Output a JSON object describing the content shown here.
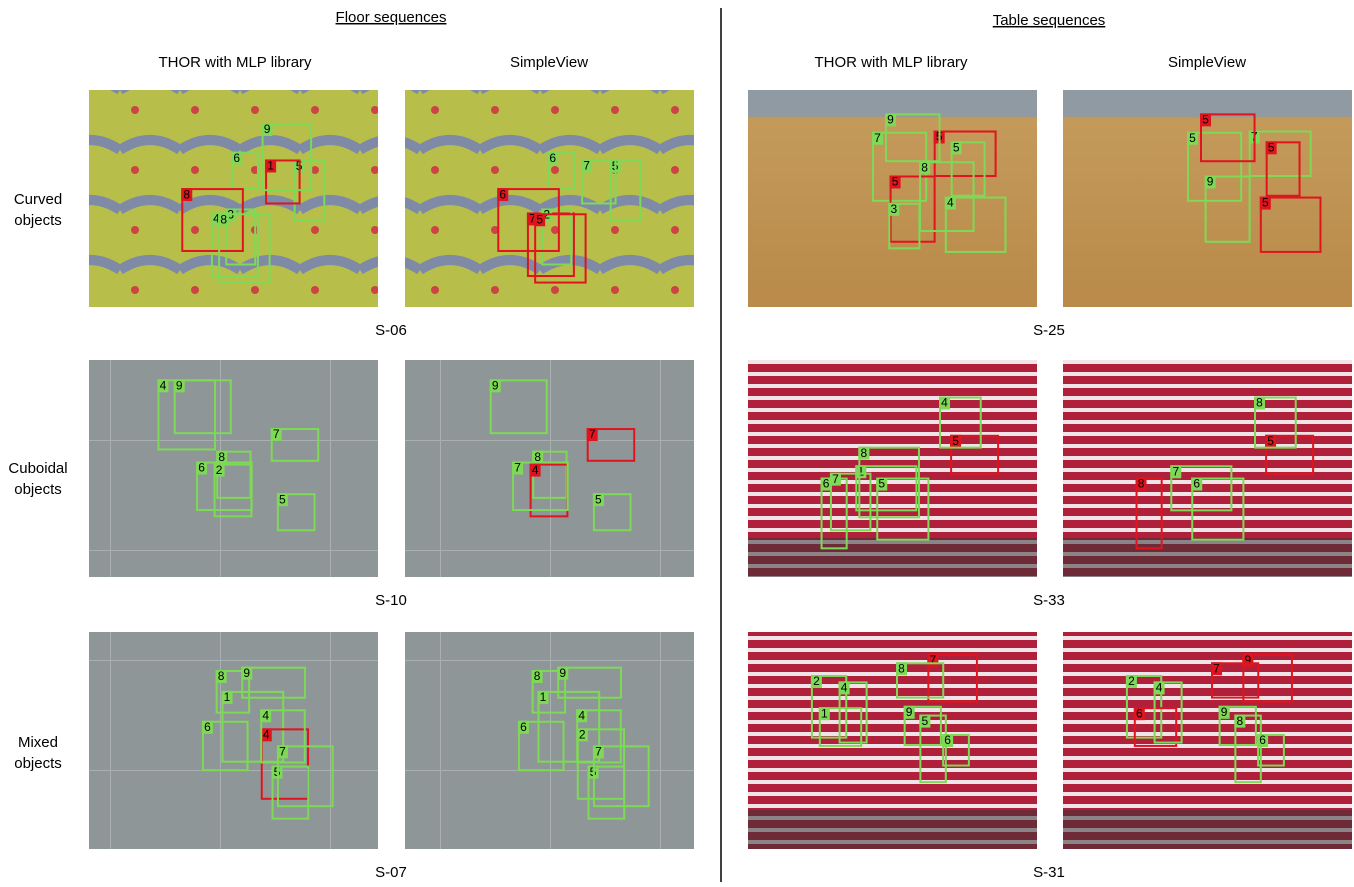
{
  "headers": [
    "Floor sequences",
    "Table sequences"
  ],
  "column_labels": [
    "THOR with MLP library",
    "SimpleView",
    "THOR with MLP library",
    "SimpleView"
  ],
  "row_labels": [
    [
      "Curved",
      "objects"
    ],
    [
      "Cuboidal",
      "objects"
    ],
    [
      "Mixed",
      "objects"
    ]
  ],
  "panels": [
    {
      "sequence": "S-06",
      "images": [
        {
          "boxes": [
            {
              "label": "4",
              "color": "green"
            },
            {
              "label": "6",
              "color": "green"
            },
            {
              "label": "5",
              "color": "green"
            },
            {
              "label": "3",
              "color": "green"
            },
            {
              "label": "1",
              "color": "red"
            },
            {
              "label": "8",
              "color": "red"
            },
            {
              "label": "8",
              "color": "green"
            },
            {
              "label": "9",
              "color": "green"
            }
          ]
        },
        {
          "boxes": [
            {
              "label": "7",
              "color": "red"
            },
            {
              "label": "6",
              "color": "green"
            },
            {
              "label": "5",
              "color": "green"
            },
            {
              "label": "2",
              "color": "green"
            },
            {
              "label": "7",
              "color": "green"
            },
            {
              "label": "6",
              "color": "red"
            },
            {
              "label": "5",
              "color": "red"
            }
          ]
        }
      ]
    },
    {
      "sequence": "S-25",
      "images": [
        {
          "boxes": [
            {
              "label": "4",
              "color": "green"
            },
            {
              "label": "5",
              "color": "red"
            },
            {
              "label": "7",
              "color": "green"
            },
            {
              "label": "5",
              "color": "green"
            },
            {
              "label": "5",
              "color": "red"
            },
            {
              "label": "9",
              "color": "green"
            },
            {
              "label": "8",
              "color": "green"
            },
            {
              "label": "3",
              "color": "green"
            }
          ]
        },
        {
          "boxes": [
            {
              "label": "5",
              "color": "red"
            },
            {
              "label": "7",
              "color": "green"
            },
            {
              "label": "5",
              "color": "green"
            },
            {
              "label": "5",
              "color": "red"
            },
            {
              "label": "9",
              "color": "green"
            },
            {
              "label": "5",
              "color": "red"
            }
          ]
        }
      ]
    },
    {
      "sequence": "S-10",
      "images": [
        {
          "boxes": [
            {
              "label": "8",
              "color": "green"
            },
            {
              "label": "9",
              "color": "green"
            },
            {
              "label": "5",
              "color": "green"
            },
            {
              "label": "2",
              "color": "green"
            },
            {
              "label": "6",
              "color": "green"
            },
            {
              "label": "7",
              "color": "green"
            },
            {
              "label": "4",
              "color": "green"
            }
          ]
        },
        {
          "boxes": [
            {
              "label": "8",
              "color": "green"
            },
            {
              "label": "9",
              "color": "green"
            },
            {
              "label": "5",
              "color": "green"
            },
            {
              "label": "4",
              "color": "red"
            },
            {
              "label": "7",
              "color": "green"
            },
            {
              "label": "7",
              "color": "red"
            }
          ]
        }
      ]
    },
    {
      "sequence": "S-33",
      "images": [
        {
          "boxes": [
            {
              "label": "5",
              "color": "red"
            },
            {
              "label": "5",
              "color": "green"
            },
            {
              "label": "1",
              "color": "green"
            },
            {
              "label": "4",
              "color": "green"
            },
            {
              "label": "6",
              "color": "green"
            },
            {
              "label": "7",
              "color": "green"
            },
            {
              "label": "8",
              "color": "green"
            }
          ]
        },
        {
          "boxes": [
            {
              "label": "5",
              "color": "red"
            },
            {
              "label": "6",
              "color": "green"
            },
            {
              "label": "7",
              "color": "green"
            },
            {
              "label": "8",
              "color": "green"
            },
            {
              "label": "8",
              "color": "red"
            }
          ]
        }
      ]
    },
    {
      "sequence": "S-07",
      "images": [
        {
          "boxes": [
            {
              "label": "1",
              "color": "green"
            },
            {
              "label": "4",
              "color": "red"
            },
            {
              "label": "4",
              "color": "green"
            },
            {
              "label": "6",
              "color": "green"
            },
            {
              "label": "5",
              "color": "green"
            },
            {
              "label": "8",
              "color": "green"
            },
            {
              "label": "9",
              "color": "green"
            },
            {
              "label": "7",
              "color": "green"
            }
          ]
        },
        {
          "boxes": [
            {
              "label": "1",
              "color": "green"
            },
            {
              "label": "2",
              "color": "green"
            },
            {
              "label": "4",
              "color": "green"
            },
            {
              "label": "6",
              "color": "green"
            },
            {
              "label": "5",
              "color": "green"
            },
            {
              "label": "8",
              "color": "green"
            },
            {
              "label": "9",
              "color": "green"
            },
            {
              "label": "7",
              "color": "green"
            }
          ]
        }
      ]
    },
    {
      "sequence": "S-31",
      "images": [
        {
          "boxes": [
            {
              "label": "2",
              "color": "green"
            },
            {
              "label": "1",
              "color": "green"
            },
            {
              "label": "4",
              "color": "green"
            },
            {
              "label": "7",
              "color": "red"
            },
            {
              "label": "8",
              "color": "green"
            },
            {
              "label": "5",
              "color": "green"
            },
            {
              "label": "6",
              "color": "green"
            },
            {
              "label": "9",
              "color": "green"
            }
          ]
        },
        {
          "boxes": [
            {
              "label": "2",
              "color": "green"
            },
            {
              "label": "6",
              "color": "red"
            },
            {
              "label": "4",
              "color": "green"
            },
            {
              "label": "9",
              "color": "red"
            },
            {
              "label": "7",
              "color": "red"
            },
            {
              "label": "8",
              "color": "green"
            },
            {
              "label": "6",
              "color": "green"
            },
            {
              "label": "9",
              "color": "green"
            }
          ]
        }
      ]
    }
  ]
}
